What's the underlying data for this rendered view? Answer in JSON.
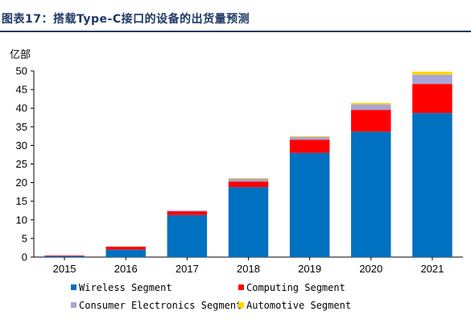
{
  "header": {
    "title": "图表17：搭载Type-C接口的设备的出货量预测"
  },
  "chart_data": {
    "type": "bar",
    "stacked": true,
    "title": "图表17：搭载Type-C接口的设备的出货量预测",
    "unit_label": "亿部",
    "categories": [
      "2015",
      "2016",
      "2017",
      "2018",
      "2019",
      "2020",
      "2021"
    ],
    "ylim": [
      0,
      50
    ],
    "yticks": [
      0,
      5,
      10,
      15,
      20,
      25,
      30,
      35,
      40,
      45,
      50
    ],
    "grid": false,
    "legend_position": "bottom",
    "series": [
      {
        "name": "Wireless Segment",
        "color": "#0070c0",
        "values": [
          0.3,
          2.0,
          11.3,
          18.8,
          28.0,
          33.7,
          38.7
        ]
      },
      {
        "name": "Computing Segment",
        "color": "#ff0000",
        "values": [
          0.1,
          0.8,
          1.0,
          1.5,
          3.5,
          5.8,
          7.8
        ]
      },
      {
        "name": "Consumer Electronics Segment",
        "color": "#a6a6d6",
        "values": [
          0.0,
          0.0,
          0.2,
          0.8,
          0.8,
          1.5,
          2.5
        ]
      },
      {
        "name": "Automotive Segment",
        "color": "#ffd700",
        "values": [
          0.0,
          0.0,
          0.0,
          0.1,
          0.2,
          0.4,
          0.8
        ]
      }
    ]
  }
}
